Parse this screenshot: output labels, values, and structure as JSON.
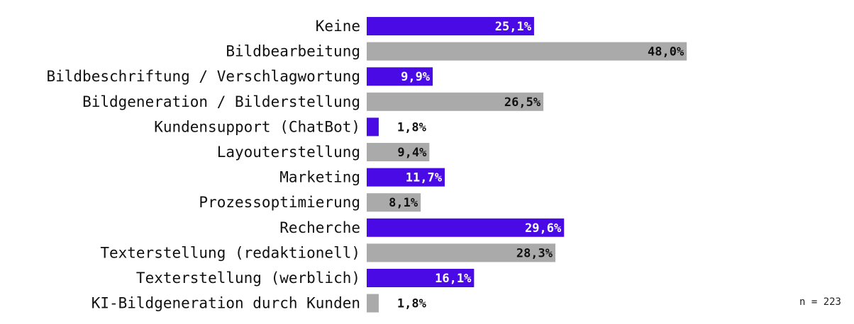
{
  "chart_data": {
    "type": "bar",
    "orientation": "horizontal",
    "categories": [
      "Keine",
      "Bildbearbeitung",
      "Bildbeschriftung / Verschlagwortung",
      "Bildgeneration / Bilderstellung",
      "Kundensupport (ChatBot)",
      "Layouterstellung",
      "Marketing",
      "Prozessoptimierung",
      "Recherche",
      "Texterstellung (redaktionell)",
      "Texterstellung (werblich)",
      "KI-Bildgeneration durch Kunden"
    ],
    "values": [
      25.1,
      48.0,
      9.9,
      26.5,
      1.8,
      9.4,
      11.7,
      8.1,
      29.6,
      28.3,
      16.1,
      1.8
    ],
    "value_labels": [
      "25,1%",
      "48,0%",
      "9,9%",
      "26,5%",
      "1,8%",
      "9,4%",
      "11,7%",
      "8,1%",
      "29,6%",
      "28,3%",
      "16,1%",
      "1,8%"
    ],
    "unit": "%",
    "xlim": [
      0,
      100
    ],
    "grid": false,
    "bar_colors": [
      "#4a0ae6",
      "#aaaaaa"
    ],
    "title": "",
    "xlabel": "",
    "ylabel": "",
    "note": "n = 223"
  }
}
